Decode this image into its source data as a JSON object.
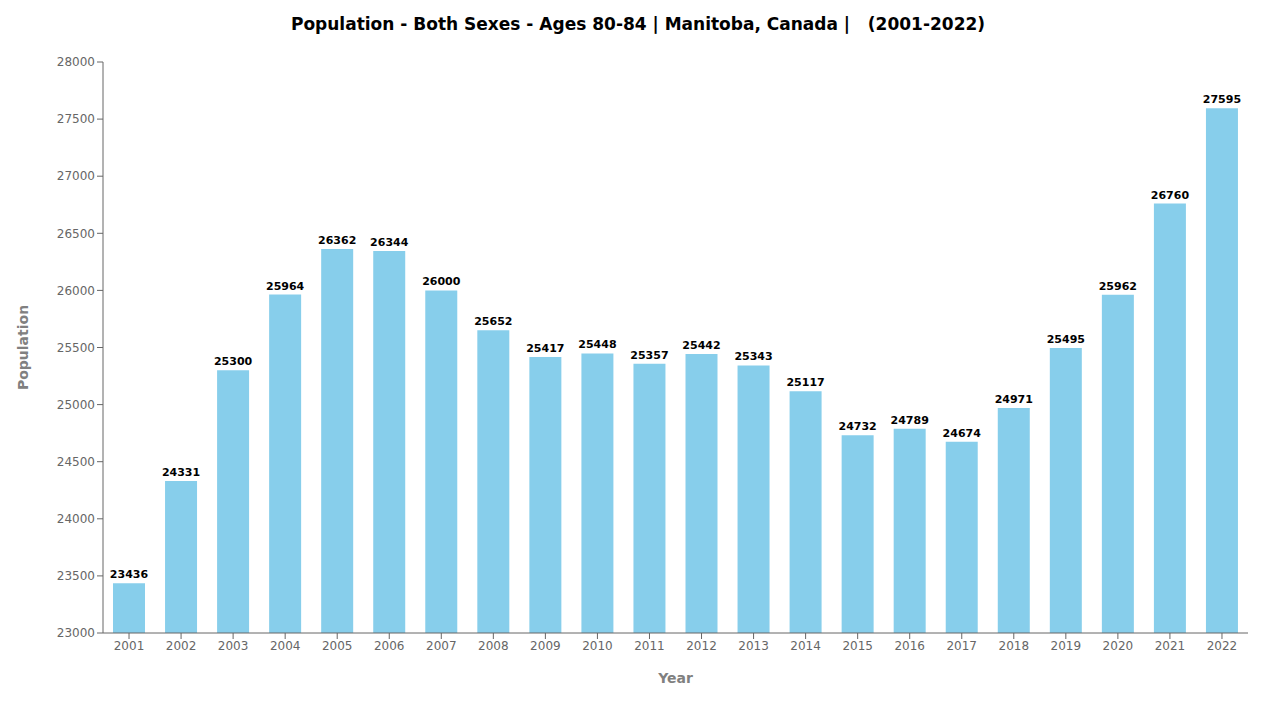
{
  "chart_data": {
    "type": "bar",
    "title": "Population - Both Sexes - Ages 80-84 | Manitoba, Canada |   (2001-2022)",
    "xlabel": "Year",
    "ylabel": "Population",
    "categories": [
      "2001",
      "2002",
      "2003",
      "2004",
      "2005",
      "2006",
      "2007",
      "2008",
      "2009",
      "2010",
      "2011",
      "2012",
      "2013",
      "2014",
      "2015",
      "2016",
      "2017",
      "2018",
      "2019",
      "2020",
      "2021",
      "2022"
    ],
    "values": [
      23436,
      24331,
      25300,
      25964,
      26362,
      26344,
      26000,
      25652,
      25417,
      25448,
      25357,
      25442,
      25343,
      25117,
      24732,
      24789,
      24674,
      24971,
      25495,
      25962,
      26760,
      27595
    ],
    "color": "#87CEEB",
    "ylim": [
      23000,
      28000
    ],
    "yticks": [
      23000,
      23500,
      24000,
      24500,
      25000,
      25500,
      26000,
      26500,
      27000,
      27500,
      28000
    ],
    "grid": false,
    "data_labels": true
  }
}
